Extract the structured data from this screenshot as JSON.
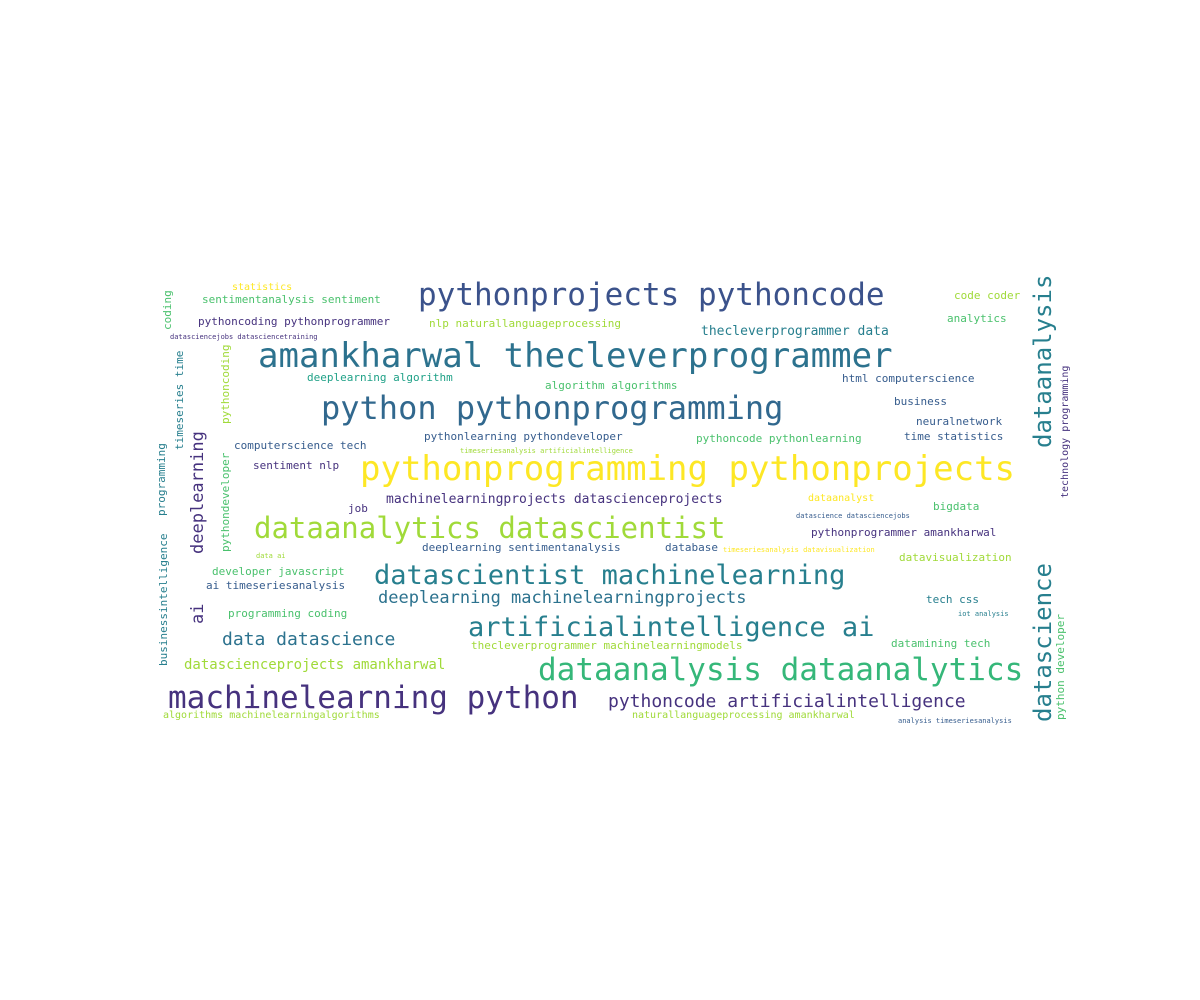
{
  "palette": {
    "deep_purple": "#46327e",
    "indigo": "#365c8d",
    "teal_blue": "#277f8e",
    "teal": "#1fa187",
    "green": "#4ac16d",
    "lime": "#a0da39",
    "yellow": "#fde725"
  },
  "words": [
    {
      "text": "statistics",
      "color": "#fde725"
    },
    {
      "text": "coding",
      "color": "#4ac16d"
    },
    {
      "text": "sentimentanalysis sentiment",
      "color": "#4ac16d"
    },
    {
      "text": "pythonprojects pythoncode",
      "color": "#3b528b"
    },
    {
      "text": "code coder",
      "color": "#a0da39"
    },
    {
      "text": "pythoncoding pythonprogrammer",
      "color": "#46327e"
    },
    {
      "text": "nlp naturallanguageprocessing",
      "color": "#a0da39"
    },
    {
      "text": "analytics",
      "color": "#4ac16d"
    },
    {
      "text": "thecleverprogrammer data",
      "color": "#277f8e"
    },
    {
      "text": "datasciencejobs datasciencetraining",
      "color": "#46327e"
    },
    {
      "text": "amankharwal thecleverprogrammer",
      "color": "#2c728e"
    },
    {
      "text": "dataanalysis",
      "color": "#277f8e"
    },
    {
      "text": "deeplearning algorithm",
      "color": "#1fa187"
    },
    {
      "text": "html computerscience",
      "color": "#365c8d"
    },
    {
      "text": "algorithm algorithms",
      "color": "#4ac16d"
    },
    {
      "text": "timeseries time",
      "color": "#277f8e"
    },
    {
      "text": "pythoncoding",
      "color": "#a0da39"
    },
    {
      "text": "technology programming",
      "color": "#46327e"
    },
    {
      "text": "python pythonprogramming",
      "color": "#31688e"
    },
    {
      "text": "business",
      "color": "#365c8d"
    },
    {
      "text": "neuralnetwork",
      "color": "#365c8d"
    },
    {
      "text": "programming",
      "color": "#277f8e"
    },
    {
      "text": "computerscience tech",
      "color": "#365c8d"
    },
    {
      "text": "pythonlearning pythondeveloper",
      "color": "#365c8d"
    },
    {
      "text": "pythoncode pythonlearning",
      "color": "#4ac16d"
    },
    {
      "text": "time statistics",
      "color": "#365c8d"
    },
    {
      "text": "timeseriesanalysis artificialintelligence",
      "color": "#a0da39"
    },
    {
      "text": "deeplearning",
      "color": "#46327e"
    },
    {
      "text": "pythondeveloper",
      "color": "#4ac16d"
    },
    {
      "text": "sentiment nlp",
      "color": "#46327e"
    },
    {
      "text": "pythonprogramming pythonprojects",
      "color": "#fde725"
    },
    {
      "text": "datascience",
      "color": "#277f8e"
    },
    {
      "text": "machinelearningprojects datascienceprojects",
      "color": "#46327e"
    },
    {
      "text": "dataanalyst",
      "color": "#fde725"
    },
    {
      "text": "job",
      "color": "#46327e"
    },
    {
      "text": "bigdata",
      "color": "#4ac16d"
    },
    {
      "text": "datascience datasciencejobs",
      "color": "#365c8d"
    },
    {
      "text": "dataanalytics datascientist",
      "color": "#a0da39"
    },
    {
      "text": "pythonprogrammer amankharwal",
      "color": "#46327e"
    },
    {
      "text": "businessintelligence",
      "color": "#277f8e"
    },
    {
      "text": "ai",
      "color": "#46327e"
    },
    {
      "text": "deeplearning sentimentanalysis",
      "color": "#365c8d"
    },
    {
      "text": "database",
      "color": "#365c8d"
    },
    {
      "text": "timeseriesanalysis datavisualization",
      "color": "#fde725"
    },
    {
      "text": "data ai",
      "color": "#a0da39"
    },
    {
      "text": "datavisualization",
      "color": "#a0da39"
    },
    {
      "text": "developer javascript",
      "color": "#4ac16d"
    },
    {
      "text": "datascientist machinelearning",
      "color": "#277f8e"
    },
    {
      "text": "ai timeseriesanalysis",
      "color": "#365c8d"
    },
    {
      "text": "deeplearning machinelearningprojects",
      "color": "#2c728e"
    },
    {
      "text": "python developer",
      "color": "#4ac16d"
    },
    {
      "text": "programming coding",
      "color": "#4ac16d"
    },
    {
      "text": "tech css",
      "color": "#277f8e"
    },
    {
      "text": "iot analysis",
      "color": "#277f8e"
    },
    {
      "text": "artificialintelligence ai",
      "color": "#277f8e"
    },
    {
      "text": "data datascience",
      "color": "#2c728e"
    },
    {
      "text": "thecleverprogrammer machinelearningmodels",
      "color": "#a0da39"
    },
    {
      "text": "datamining tech",
      "color": "#4ac16d"
    },
    {
      "text": "datascienceprojects amankharwal",
      "color": "#a0da39"
    },
    {
      "text": "dataanalysis dataanalytics",
      "color": "#35b779"
    },
    {
      "text": "machinelearning python",
      "color": "#46327e"
    },
    {
      "text": "pythoncode artificialintelligence",
      "color": "#46327e"
    },
    {
      "text": "algorithms machinelearningalgorithms",
      "color": "#a0da39"
    },
    {
      "text": "naturallanguageprocessing amankharwal",
      "color": "#a0da39"
    },
    {
      "text": "analysis timeseriesanalysis",
      "color": "#365c8d"
    }
  ]
}
